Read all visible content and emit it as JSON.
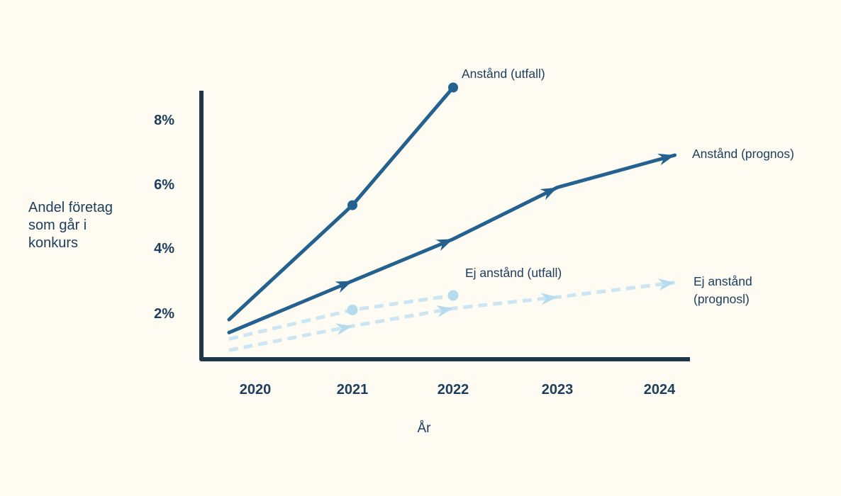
{
  "colors": {
    "background": "#fdfbf2",
    "axis": "#1d3649",
    "text": "#1d3d5c",
    "dark": "#24618f",
    "light": "#cbe5f2",
    "light_marker": "#b5dcee"
  },
  "axes": {
    "y_title": [
      "Andel företag",
      "som går i",
      "konkurs"
    ],
    "x_title": "År",
    "y_ticks": [
      "8%",
      "6%",
      "4%",
      "2%"
    ],
    "x_ticks": [
      "2020",
      "2021",
      "2022",
      "2023",
      "2024"
    ]
  },
  "series_labels": {
    "anstand_utfall": "Anstånd (utfall)",
    "anstand_prognos": "Anstånd (prognos)",
    "ej_anstand_utfall": "Ej anstånd (utfall)",
    "ej_anstand_prognos_line1": "Ej anstånd",
    "ej_anstand_prognos_line2": "(prognosl)"
  },
  "chart_data": {
    "type": "line",
    "title": "",
    "xlabel": "År",
    "ylabel": "Andel företag som går i konkurs",
    "x_tick_years": [
      2020,
      2021,
      2022,
      2023,
      2024
    ],
    "y_tick_percent": [
      2,
      4,
      6,
      8
    ],
    "ylim_percent": [
      0,
      9.5
    ],
    "grid": false,
    "legend_position": "inline-annotations",
    "series": [
      {
        "name": "Anstånd (utfall)",
        "line": "solid",
        "color_key": "dark",
        "marker": "dot",
        "x": [
          2020,
          2021,
          2022
        ],
        "values": [
          1.8,
          5.35,
          9.0
        ]
      },
      {
        "name": "Anstånd (prognos)",
        "line": "solid",
        "color_key": "dark",
        "marker": "arrow",
        "x": [
          2020,
          2021,
          2022,
          2023,
          2024
        ],
        "values": [
          1.4,
          3.0,
          4.3,
          5.9,
          6.9
        ]
      },
      {
        "name": "Ej anstånd (utfall)",
        "line": "dashed",
        "color_key": "light",
        "marker": "dot",
        "x": [
          2020,
          2021,
          2022
        ],
        "values": [
          1.2,
          2.1,
          2.55
        ]
      },
      {
        "name": "Ej anstånd (prognosl)",
        "line": "dashed",
        "color_key": "light",
        "marker": "arrow",
        "x": [
          2020,
          2021,
          2022,
          2023,
          2024
        ],
        "values": [
          0.85,
          1.6,
          2.15,
          2.5,
          2.95
        ]
      }
    ]
  }
}
